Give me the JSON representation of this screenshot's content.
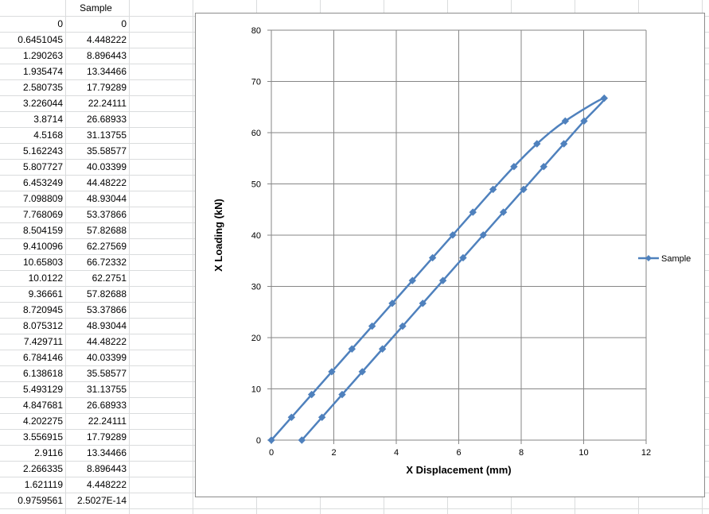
{
  "sheet": {
    "header": "Sample",
    "rows": [
      [
        "0",
        "0"
      ],
      [
        "0.6451045",
        "4.448222"
      ],
      [
        "1.290263",
        "8.896443"
      ],
      [
        "1.935474",
        "13.34466"
      ],
      [
        "2.580735",
        "17.79289"
      ],
      [
        "3.226044",
        "22.24111"
      ],
      [
        "3.8714",
        "26.68933"
      ],
      [
        "4.5168",
        "31.13755"
      ],
      [
        "5.162243",
        "35.58577"
      ],
      [
        "5.807727",
        "40.03399"
      ],
      [
        "6.453249",
        "44.48222"
      ],
      [
        "7.098809",
        "48.93044"
      ],
      [
        "7.768069",
        "53.37866"
      ],
      [
        "8.504159",
        "57.82688"
      ],
      [
        "9.410096",
        "62.27569"
      ],
      [
        "10.65803",
        "66.72332"
      ],
      [
        "10.0122",
        "62.2751"
      ],
      [
        "9.36661",
        "57.82688"
      ],
      [
        "8.720945",
        "53.37866"
      ],
      [
        "8.075312",
        "48.93044"
      ],
      [
        "7.429711",
        "44.48222"
      ],
      [
        "6.784146",
        "40.03399"
      ],
      [
        "6.138618",
        "35.58577"
      ],
      [
        "5.493129",
        "31.13755"
      ],
      [
        "4.847681",
        "26.68933"
      ],
      [
        "4.202275",
        "22.24111"
      ],
      [
        "3.556915",
        "17.79289"
      ],
      [
        "2.9116",
        "13.34466"
      ],
      [
        "2.266335",
        "8.896443"
      ],
      [
        "1.621119",
        "4.448222"
      ],
      [
        "0.9759561",
        "2.5027E-14"
      ]
    ]
  },
  "chart_data": {
    "type": "scatter",
    "title": "",
    "xlabel": "X Displacement (mm)",
    "ylabel": "X Loading (kN)",
    "xlim": [
      0,
      12
    ],
    "ylim": [
      0,
      80
    ],
    "xticks": [
      0,
      2,
      4,
      6,
      8,
      10,
      12
    ],
    "yticks": [
      0,
      10,
      20,
      30,
      40,
      50,
      60,
      70,
      80
    ],
    "grid": true,
    "legend_position": "right",
    "series": [
      {
        "name": "Sample",
        "color": "#4F81BD",
        "marker": "diamond",
        "smooth": true,
        "points": [
          [
            0,
            0
          ],
          [
            0.6451045,
            4.448222
          ],
          [
            1.290263,
            8.896443
          ],
          [
            1.935474,
            13.34466
          ],
          [
            2.580735,
            17.79289
          ],
          [
            3.226044,
            22.24111
          ],
          [
            3.8714,
            26.68933
          ],
          [
            4.5168,
            31.13755
          ],
          [
            5.162243,
            35.58577
          ],
          [
            5.807727,
            40.03399
          ],
          [
            6.453249,
            44.48222
          ],
          [
            7.098809,
            48.93044
          ],
          [
            7.768069,
            53.37866
          ],
          [
            8.504159,
            57.82688
          ],
          [
            9.410096,
            62.27569
          ],
          [
            10.65803,
            66.72332
          ],
          [
            10.0122,
            62.2751
          ],
          [
            9.36661,
            57.82688
          ],
          [
            8.720945,
            53.37866
          ],
          [
            8.075312,
            48.93044
          ],
          [
            7.429711,
            44.48222
          ],
          [
            6.784146,
            40.03399
          ],
          [
            6.138618,
            35.58577
          ],
          [
            5.493129,
            31.13755
          ],
          [
            4.847681,
            26.68933
          ],
          [
            4.202275,
            22.24111
          ],
          [
            3.556915,
            17.79289
          ],
          [
            2.9116,
            13.34466
          ],
          [
            2.266335,
            8.896443
          ],
          [
            1.621119,
            4.448222
          ],
          [
            0.9759561,
            0
          ]
        ]
      }
    ]
  }
}
